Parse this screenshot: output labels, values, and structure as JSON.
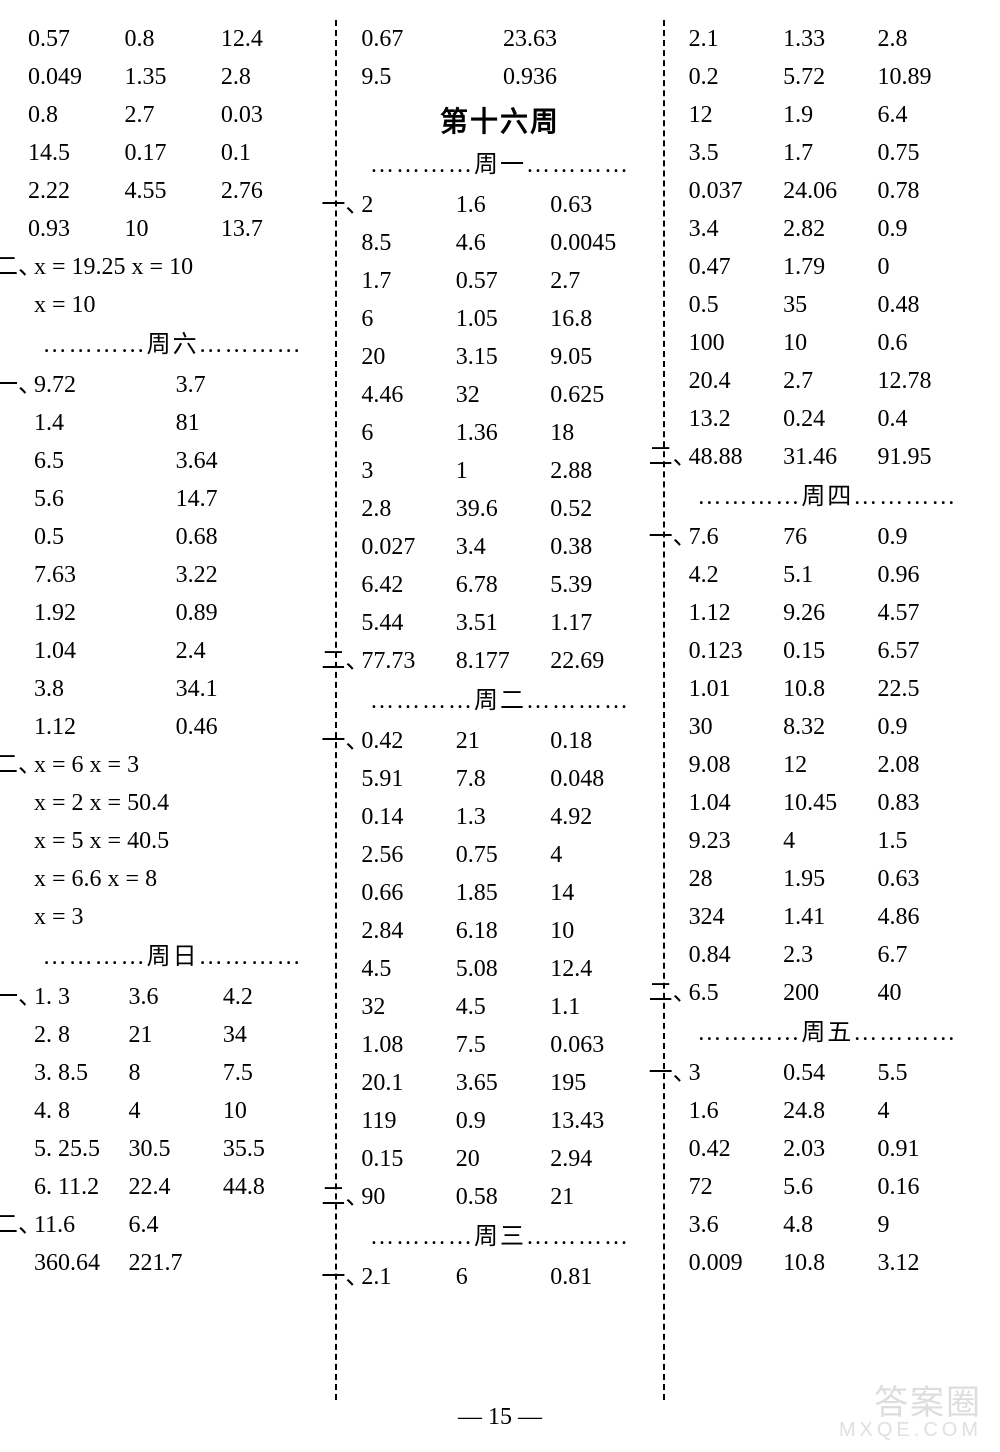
{
  "page_number": "— 15 —",
  "watermark": {
    "line1": "答案圈",
    "line2": "MXQE.COM"
  },
  "labels": {
    "sec1": "一、",
    "sec2": "二、"
  },
  "col1": {
    "block1_rows": [
      [
        "0.57",
        "0.8",
        "12.4"
      ],
      [
        "0.049",
        "1.35",
        "2.8"
      ],
      [
        "0.8",
        "2.7",
        "0.03"
      ],
      [
        "14.5",
        "0.17",
        "0.1"
      ],
      [
        "2.22",
        "4.55",
        "2.76"
      ],
      [
        "0.93",
        "10",
        "13.7"
      ]
    ],
    "block2_lines": [
      "x = 19.25    x = 10",
      "x = 10"
    ],
    "sep_sat": "…………周六…………",
    "sat1_rows": [
      [
        "9.72",
        "3.7"
      ],
      [
        "1.4",
        "81"
      ],
      [
        "6.5",
        "3.64"
      ],
      [
        "5.6",
        "14.7"
      ],
      [
        "0.5",
        "0.68"
      ],
      [
        "7.63",
        "3.22"
      ],
      [
        "1.92",
        "0.89"
      ],
      [
        "1.04",
        "2.4"
      ],
      [
        "3.8",
        "34.1"
      ],
      [
        "1.12",
        "0.46"
      ]
    ],
    "sat2_lines": [
      "x = 6    x = 3",
      "x = 2    x = 50.4",
      "x = 5    x = 40.5",
      "x = 6.6    x = 8",
      "x = 3"
    ],
    "sep_sun": "…………周日…………",
    "sun1_rows": [
      [
        "1.  3",
        "3.6",
        "4.2"
      ],
      [
        "2.  8",
        "21",
        "34"
      ],
      [
        "3.  8.5",
        "8",
        "7.5"
      ],
      [
        "4.  8",
        "4",
        "10"
      ],
      [
        "5.  25.5",
        "30.5",
        "35.5"
      ],
      [
        "6.  11.2",
        "22.4",
        "44.8"
      ]
    ],
    "sun2_rows": [
      [
        "11.6",
        "6.4",
        ""
      ],
      [
        "360.64",
        "221.7",
        ""
      ]
    ]
  },
  "col2": {
    "top_rows": [
      [
        "0.67",
        "23.63"
      ],
      [
        "9.5",
        "0.936"
      ]
    ],
    "week_title": "第十六周",
    "sep_mon": "…………周一…………",
    "mon1_rows": [
      [
        "2",
        "1.6",
        "0.63"
      ],
      [
        "8.5",
        "4.6",
        "0.0045"
      ],
      [
        "1.7",
        "0.57",
        "2.7"
      ],
      [
        "6",
        "1.05",
        "16.8"
      ],
      [
        "20",
        "3.15",
        "9.05"
      ],
      [
        "4.46",
        "32",
        "0.625"
      ],
      [
        "6",
        "1.36",
        "18"
      ],
      [
        "3",
        "1",
        "2.88"
      ],
      [
        "2.8",
        "39.6",
        "0.52"
      ],
      [
        "0.027",
        "3.4",
        "0.38"
      ],
      [
        "6.42",
        "6.78",
        "5.39"
      ],
      [
        "5.44",
        "3.51",
        "1.17"
      ]
    ],
    "mon2_rows": [
      [
        "77.73",
        "8.177",
        "22.69"
      ]
    ],
    "sep_tue": "…………周二…………",
    "tue1_rows": [
      [
        "0.42",
        "21",
        "0.18"
      ],
      [
        "5.91",
        "7.8",
        "0.048"
      ],
      [
        "0.14",
        "1.3",
        "4.92"
      ],
      [
        "2.56",
        "0.75",
        "4"
      ],
      [
        "0.66",
        "1.85",
        "14"
      ],
      [
        "2.84",
        "6.18",
        "10"
      ],
      [
        "4.5",
        "5.08",
        "12.4"
      ],
      [
        "32",
        "4.5",
        "1.1"
      ],
      [
        "1.08",
        "7.5",
        "0.063"
      ],
      [
        "20.1",
        "3.65",
        "195"
      ],
      [
        "119",
        "0.9",
        "13.43"
      ],
      [
        "0.15",
        "20",
        "2.94"
      ]
    ],
    "tue2_rows": [
      [
        "90",
        "0.58",
        "21"
      ]
    ],
    "sep_wed": "…………周三…………",
    "wed1_rows": [
      [
        "2.1",
        "6",
        "0.81"
      ]
    ]
  },
  "col3": {
    "top_rows": [
      [
        "2.1",
        "1.33",
        "2.8"
      ],
      [
        "0.2",
        "5.72",
        "10.89"
      ],
      [
        "12",
        "1.9",
        "6.4"
      ],
      [
        "3.5",
        "1.7",
        "0.75"
      ],
      [
        "0.037",
        "24.06",
        "0.78"
      ],
      [
        "3.4",
        "2.82",
        "0.9"
      ],
      [
        "0.47",
        "1.79",
        "0"
      ],
      [
        "0.5",
        "35",
        "0.48"
      ],
      [
        "100",
        "10",
        "0.6"
      ],
      [
        "20.4",
        "2.7",
        "12.78"
      ],
      [
        "13.2",
        "0.24",
        "0.4"
      ]
    ],
    "top2_rows": [
      [
        "48.88",
        "31.46",
        "91.95"
      ]
    ],
    "sep_thu": "…………周四…………",
    "thu1_rows": [
      [
        "7.6",
        "76",
        "0.9"
      ],
      [
        "4.2",
        "5.1",
        "0.96"
      ],
      [
        "1.12",
        "9.26",
        "4.57"
      ],
      [
        "0.123",
        "0.15",
        "6.57"
      ],
      [
        "1.01",
        "10.8",
        "22.5"
      ],
      [
        "30",
        "8.32",
        "0.9"
      ],
      [
        "9.08",
        "12",
        "2.08"
      ],
      [
        "1.04",
        "10.45",
        "0.83"
      ],
      [
        "9.23",
        "4",
        "1.5"
      ],
      [
        "28",
        "1.95",
        "0.63"
      ],
      [
        "324",
        "1.41",
        "4.86"
      ],
      [
        "0.84",
        "2.3",
        "6.7"
      ]
    ],
    "thu2_rows": [
      [
        "6.5",
        "200",
        "40"
      ]
    ],
    "sep_fri": "…………周五…………",
    "fri1_rows": [
      [
        "3",
        "0.54",
        "5.5"
      ],
      [
        "1.6",
        "24.8",
        "4"
      ],
      [
        "0.42",
        "2.03",
        "0.91"
      ],
      [
        "72",
        "5.6",
        "0.16"
      ],
      [
        "3.6",
        "4.8",
        "9"
      ],
      [
        "0.009",
        "10.8",
        "3.12"
      ]
    ]
  }
}
